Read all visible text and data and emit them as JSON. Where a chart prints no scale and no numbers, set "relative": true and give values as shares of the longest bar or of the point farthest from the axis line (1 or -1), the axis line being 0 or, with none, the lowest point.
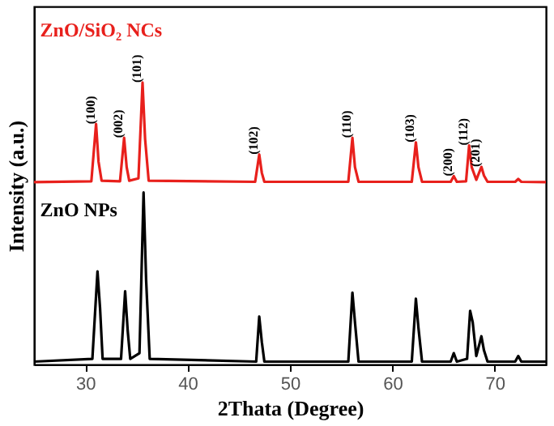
{
  "chart_data": {
    "type": "line",
    "relative": true,
    "xlabel": "2Thata (Degree)",
    "ylabel": "Intensity (a.u.)",
    "xlim": [
      25,
      75
    ],
    "xticks": [
      30,
      40,
      50,
      60,
      70
    ],
    "grid": false,
    "marker": "none",
    "line_style": "solid",
    "series": [
      {
        "name": "ZnO/SiO₂ NCs",
        "color": "#e8201c",
        "x": [
          25,
          30.6,
          31.06,
          31.3,
          31.6,
          33.4,
          33.8,
          34.05,
          34.3,
          35.2,
          35.6,
          35.85,
          36.2,
          46.6,
          47.0,
          47.25,
          47.5,
          55.7,
          56.1,
          56.35,
          56.7,
          61.9,
          62.3,
          62.55,
          62.9,
          65.7,
          66.0,
          66.3,
          67.2,
          67.5,
          67.75,
          68.2,
          68.7,
          68.95,
          69.3,
          72.0,
          72.3,
          72.6,
          75
        ],
        "values": [
          0.647,
          0.65,
          0.853,
          0.72,
          0.652,
          0.65,
          0.804,
          0.7,
          0.652,
          0.66,
          1.0,
          0.8,
          0.652,
          0.648,
          0.745,
          0.68,
          0.648,
          0.648,
          0.804,
          0.7,
          0.648,
          0.648,
          0.788,
          0.7,
          0.648,
          0.648,
          0.668,
          0.648,
          0.65,
          0.777,
          0.7,
          0.655,
          0.701,
          0.67,
          0.648,
          0.648,
          0.658,
          0.648,
          0.647
        ]
      },
      {
        "name": "ZnO NPs",
        "color": "#000000",
        "x": [
          25,
          30.7,
          31.2,
          31.45,
          31.7,
          33.5,
          33.9,
          34.15,
          34.4,
          35.3,
          35.7,
          35.95,
          36.3,
          46.7,
          47.0,
          47.25,
          47.5,
          55.7,
          56.1,
          56.35,
          56.7,
          61.9,
          62.3,
          62.55,
          62.9,
          65.7,
          66.0,
          66.3,
          67.3,
          67.6,
          67.85,
          68.2,
          68.7,
          68.95,
          69.3,
          72.0,
          72.3,
          72.6,
          75
        ],
        "values": [
          0.01,
          0.02,
          0.33,
          0.2,
          0.02,
          0.02,
          0.26,
          0.12,
          0.02,
          0.04,
          0.61,
          0.3,
          0.02,
          0.01,
          0.17,
          0.08,
          0.01,
          0.01,
          0.255,
          0.15,
          0.01,
          0.01,
          0.233,
          0.13,
          0.01,
          0.01,
          0.04,
          0.01,
          0.02,
          0.19,
          0.15,
          0.03,
          0.1,
          0.05,
          0.01,
          0.01,
          0.03,
          0.01,
          0.01
        ]
      }
    ],
    "annotations": [
      {
        "text": "(100)",
        "x": 31.06,
        "y": 0.853
      },
      {
        "text": "(002)",
        "x": 33.8,
        "y": 0.804
      },
      {
        "text": "(101)",
        "x": 35.6,
        "y": 1.0
      },
      {
        "text": "(102)",
        "x": 47.0,
        "y": 0.745
      },
      {
        "text": "(110)",
        "x": 56.1,
        "y": 0.804
      },
      {
        "text": "(103)",
        "x": 62.3,
        "y": 0.788
      },
      {
        "text": "(200)",
        "x": 66.0,
        "y": 0.668
      },
      {
        "text": "(112)",
        "x": 67.5,
        "y": 0.777
      },
      {
        "text": "(201)",
        "x": 68.7,
        "y": 0.701
      }
    ]
  }
}
